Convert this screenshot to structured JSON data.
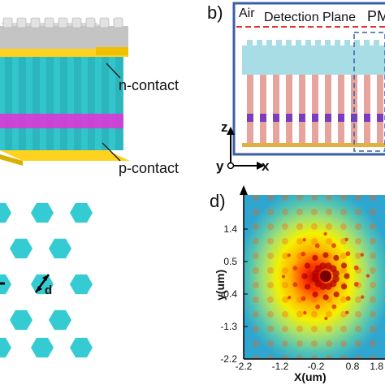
{
  "panel_b": {
    "label": "b)",
    "air": "Air",
    "detection_plane": "Detection Plane",
    "pm_label": "PM",
    "axis_z": "z",
    "axis_y": "y",
    "axis_x": "x"
  },
  "panel_a": {
    "n_contact": "n-contact",
    "p_contact": "p-contact"
  },
  "panel_c": {
    "dimension_label": "d"
  },
  "panel_d": {
    "label": "d)",
    "ylabel": "y(um)",
    "xlabel": "X(um)",
    "xticks": [
      "-2.2",
      "-1.2",
      "-0.2",
      "0.8",
      "1.8"
    ],
    "yticks": [
      "1.4",
      "0.5",
      "-0.4",
      "-1.3",
      "-2.2"
    ]
  },
  "colors": {
    "nanowire": "#3ecfd6",
    "top_layer": "#ffd21f",
    "emitter_band": "#e52ad8",
    "gray_cap": "#c8c8c8",
    "frame_blue": "#3a5fa8",
    "wire_pink": "#e7a49c",
    "detection_red": "#e03030"
  }
}
